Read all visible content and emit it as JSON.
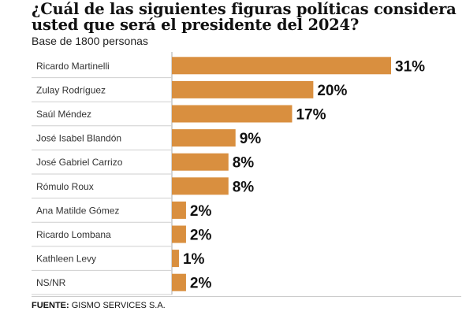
{
  "chart_data": {
    "type": "bar",
    "orientation": "horizontal",
    "title": "¿Cuál de las siguientes figuras políticas considera usted que será el presidente del 2024?",
    "subtitle": "Base de 1800 personas",
    "categories": [
      "Ricardo Martinelli",
      "Zulay Rodríguez",
      "Saúl Méndez",
      "José Isabel Blandón",
      "José Gabriel Carrizo",
      "Rómulo Roux",
      "Ana Matilde Gómez",
      "Ricardo Lombana",
      "Kathleen Levy",
      "NS/NR"
    ],
    "values": [
      31,
      20,
      17,
      9,
      8,
      8,
      2,
      2,
      1,
      2
    ],
    "value_labels": [
      "31%",
      "20%",
      "17%",
      "9%",
      "8%",
      "8%",
      "2%",
      "2%",
      "1%",
      "2%"
    ],
    "xlim": [
      0,
      31
    ],
    "grid": false,
    "bar_color": "#d98f3f"
  },
  "footer": {
    "source_label": "FUENTE:",
    "source_text": " GISMO SERVICES S.A."
  }
}
